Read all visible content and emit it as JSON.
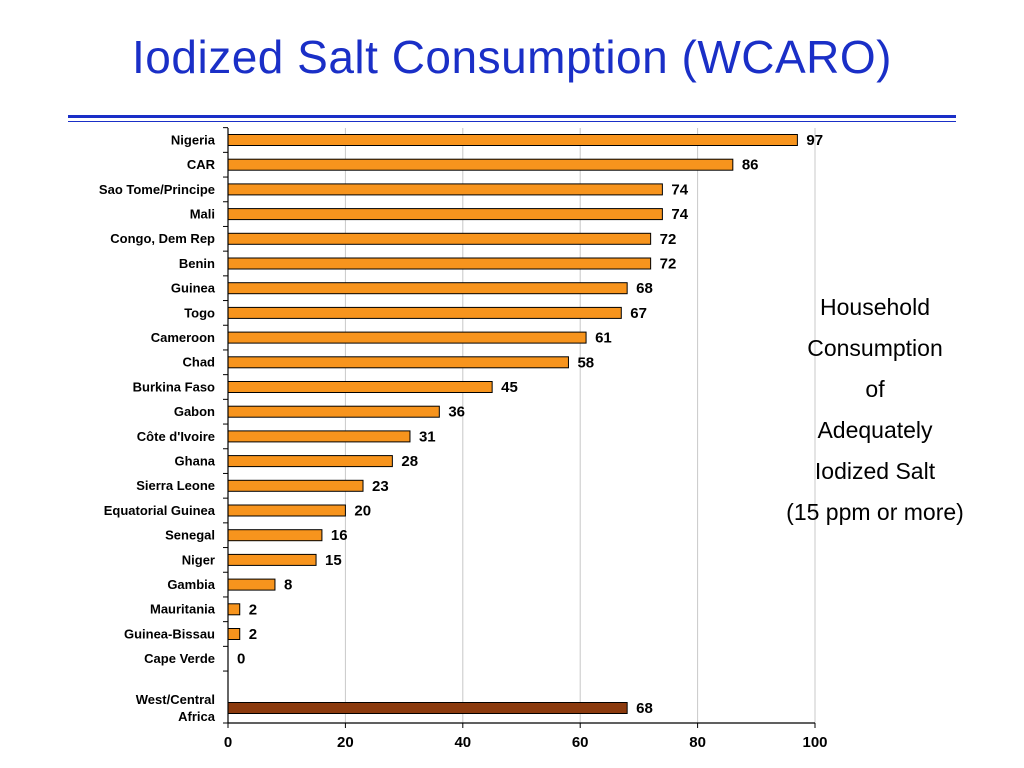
{
  "title": "Iodized Salt Consumption (WCARO)",
  "side_note": [
    "Household",
    "Consumption",
    "of",
    "Adequately",
    "Iodized Salt",
    "(15 ppm or more)"
  ],
  "colors": {
    "title": "#1a2fc7",
    "bar": "#f7941d",
    "bar_summary": "#8b3a0e",
    "bar_border": "#000000",
    "grid": "#c8c8c8"
  },
  "chart_data": {
    "type": "bar",
    "orientation": "horizontal",
    "categories": [
      "Nigeria",
      "CAR",
      "Sao Tome/Principe",
      "Mali",
      "Congo, Dem Rep",
      "Benin",
      "Guinea",
      "Togo",
      "Cameroon",
      "Chad",
      "Burkina Faso",
      "Gabon",
      "Côte d'Ivoire",
      "Ghana",
      "Sierra Leone",
      "Equatorial Guinea",
      "Senegal",
      "Niger",
      "Gambia",
      "Mauritania",
      "Guinea-Bissau",
      "Cape Verde"
    ],
    "values": [
      97,
      86,
      74,
      74,
      72,
      72,
      68,
      67,
      61,
      58,
      45,
      36,
      31,
      28,
      23,
      20,
      16,
      15,
      8,
      2,
      2,
      0
    ],
    "summary": {
      "label": [
        "West/Central",
        "Africa"
      ],
      "value": 68
    },
    "xlim": [
      0,
      100
    ],
    "xticks": [
      0,
      20,
      40,
      60,
      80,
      100
    ],
    "grid": "vertical",
    "data_labels": true
  }
}
